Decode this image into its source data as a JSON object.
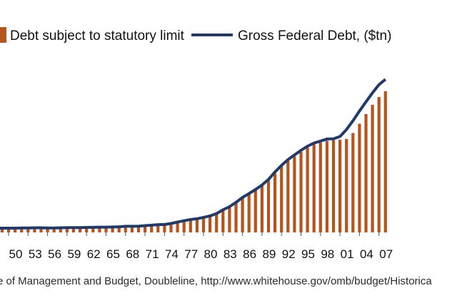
{
  "chart_data": {
    "type": "bar",
    "legend": [
      {
        "label": "Debt subject to statutory  limit",
        "color": "#b5541c",
        "kind": "bar"
      },
      {
        "label": "Gross Federal Debt, ($tn)",
        "color": "#1f3a6b",
        "kind": "line"
      }
    ],
    "x_ticks": [
      "50",
      "53",
      "56",
      "59",
      "62",
      "65",
      "68",
      "71",
      "74",
      "77",
      "80",
      "83",
      "86",
      "89",
      "92",
      "95",
      "98",
      "01",
      "04",
      "07"
    ],
    "x": [
      1948,
      1949,
      1950,
      1951,
      1952,
      1953,
      1954,
      1955,
      1956,
      1957,
      1958,
      1959,
      1960,
      1961,
      1962,
      1963,
      1964,
      1965,
      1966,
      1967,
      1968,
      1969,
      1970,
      1971,
      1972,
      1973,
      1974,
      1975,
      1976,
      1977,
      1978,
      1979,
      1980,
      1981,
      1982,
      1983,
      1984,
      1985,
      1986,
      1987,
      1988,
      1989,
      1990,
      1991,
      1992,
      1993,
      1994,
      1995,
      1996,
      1997,
      1998,
      1999,
      2000,
      2001,
      2002,
      2003,
      2004,
      2005,
      2006,
      2007,
      2008
    ],
    "series": [
      {
        "name": "Debt subject to statutory  limit",
        "values": [
          0.25,
          0.25,
          0.26,
          0.26,
          0.26,
          0.27,
          0.27,
          0.27,
          0.27,
          0.27,
          0.28,
          0.28,
          0.29,
          0.29,
          0.3,
          0.31,
          0.31,
          0.32,
          0.32,
          0.33,
          0.35,
          0.36,
          0.37,
          0.4,
          0.43,
          0.46,
          0.48,
          0.53,
          0.62,
          0.7,
          0.77,
          0.83,
          0.91,
          1.0,
          1.14,
          1.37,
          1.56,
          1.82,
          2.11,
          2.35,
          2.59,
          2.86,
          3.16,
          3.57,
          4.0,
          4.35,
          4.61,
          4.88,
          5.14,
          5.33,
          5.44,
          5.55,
          5.59,
          5.62,
          5.66,
          6.02,
          6.58,
          7.17,
          7.73,
          8.2,
          8.55
        ]
      },
      {
        "name": "Gross Federal Debt, ($tn)",
        "values": [
          0.26,
          0.26,
          0.26,
          0.26,
          0.27,
          0.27,
          0.28,
          0.28,
          0.27,
          0.27,
          0.28,
          0.29,
          0.29,
          0.29,
          0.3,
          0.31,
          0.32,
          0.32,
          0.33,
          0.34,
          0.37,
          0.37,
          0.38,
          0.41,
          0.44,
          0.47,
          0.48,
          0.54,
          0.63,
          0.71,
          0.78,
          0.83,
          0.91,
          1.0,
          1.14,
          1.37,
          1.56,
          1.82,
          2.12,
          2.35,
          2.6,
          2.87,
          3.21,
          3.66,
          4.06,
          4.41,
          4.69,
          4.97,
          5.22,
          5.41,
          5.53,
          5.66,
          5.67,
          5.81,
          6.23,
          6.76,
          7.35,
          7.91,
          8.45,
          8.95,
          9.27
        ]
      }
    ]
  },
  "source_text": "e of Management and Budget, Doubleline, http://www.whitehouse.gov/omb/budget/Historica"
}
